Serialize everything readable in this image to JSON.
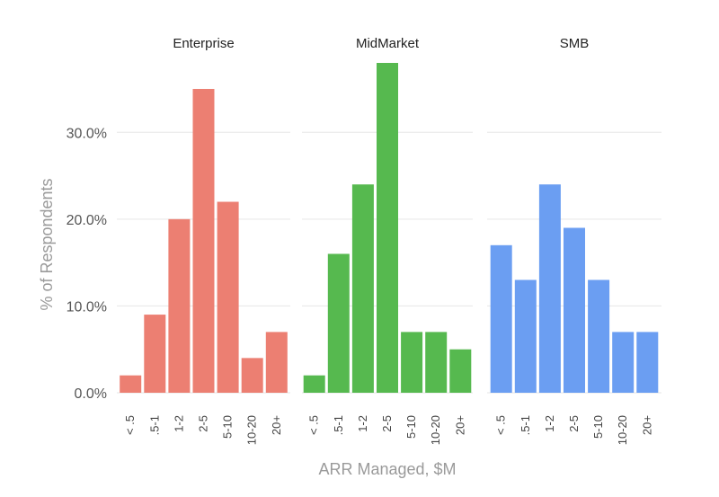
{
  "chart_data": {
    "type": "bar",
    "layout": "faceted",
    "xlabel": "ARR Managed, $M",
    "ylabel": "% of Respondents",
    "ylim": [
      0,
      38
    ],
    "yticks": [
      0,
      10,
      20,
      30
    ],
    "ytick_labels": [
      "0.0%",
      "10.0%",
      "20.0%",
      "30.0%"
    ],
    "grid": true,
    "categories": [
      "< .5",
      ".5-1",
      "1-2",
      "2-5",
      "5-10",
      "10-20",
      "20+"
    ],
    "series": [
      {
        "name": "Enterprise",
        "color": "#ec7f72",
        "values": [
          2,
          9,
          20,
          35,
          22,
          4,
          7
        ]
      },
      {
        "name": "MidMarket",
        "color": "#56b94f",
        "values": [
          2,
          16,
          24,
          38,
          7,
          7,
          5
        ]
      },
      {
        "name": "SMB",
        "color": "#6b9ef2",
        "values": [
          17,
          13,
          24,
          19,
          13,
          7,
          7
        ]
      }
    ]
  }
}
